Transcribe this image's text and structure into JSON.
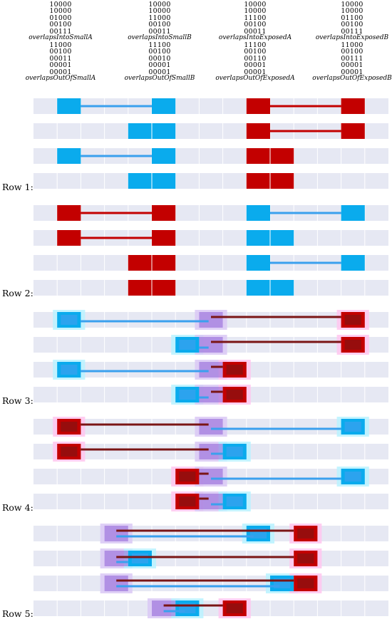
{
  "colors": {
    "blue": "#0aabed",
    "red": "#c30000",
    "lane": "#e6e8f3",
    "blueHalo": "#b8f2ff",
    "redHalo": "#ffc6ef",
    "darkRed": "#7a1515",
    "mix": "#8e5fd6",
    "line_blue": "#3aa0ee"
  },
  "columns": [
    {
      "name": "overlapsIntoSmallA",
      "bits": [
        "10000",
        "10000",
        "01000",
        "00100",
        "00111"
      ],
      "out_name": "overlapsOutOfSmallA",
      "out_bits": [
        "11000",
        "00100",
        "00011",
        "00001",
        "00001"
      ]
    },
    {
      "name": "overlapsIntoSmallB",
      "bits": [
        "10000",
        "10000",
        "11000",
        "00100",
        "00011"
      ],
      "out_name": "overlapsOutOfSmallB",
      "out_bits": [
        "11100",
        "00100",
        "00010",
        "00001",
        "00001"
      ]
    },
    {
      "name": "overlapsIntoExposedA",
      "bits": [
        "10000",
        "10000",
        "11100",
        "00100",
        "00011"
      ],
      "out_name": "overlapsOutOfExposedA",
      "out_bits": [
        "11100",
        "00100",
        "00110",
        "00001",
        "00001"
      ]
    },
    {
      "name": "overlapsIntoExposedB",
      "bits": [
        "10000",
        "10000",
        "01100",
        "00100",
        "00111"
      ],
      "out_name": "overlapsOutOfExposedB",
      "out_bits": [
        "11000",
        "00100",
        "00111",
        "00001",
        "00001"
      ]
    }
  ],
  "row_labels": [
    "Row 1:",
    "Row 2:",
    "Row 3:",
    "Row 4:",
    "Row 5:"
  ],
  "grid_columns": 15,
  "lanes": [
    {
      "row": 1,
      "rects": [
        {
          "c": 1,
          "w": 1,
          "k": "blue"
        },
        {
          "c": 5,
          "w": 1,
          "k": "blue"
        },
        {
          "c": 9,
          "w": 1,
          "k": "red"
        },
        {
          "c": 13,
          "w": 1,
          "k": "red"
        }
      ],
      "lines": [
        {
          "a": 2,
          "b": 5,
          "k": "blue"
        },
        {
          "a": 10,
          "b": 13,
          "k": "red"
        }
      ]
    },
    {
      "row": 1,
      "rects": [
        {
          "c": 4,
          "w": 2,
          "k": "blue"
        },
        {
          "c": 9,
          "w": 1,
          "k": "red"
        },
        {
          "c": 13,
          "w": 1,
          "k": "red"
        }
      ],
      "lines": [
        {
          "a": 10,
          "b": 13,
          "k": "red"
        }
      ]
    },
    {
      "row": 1,
      "rects": [
        {
          "c": 1,
          "w": 1,
          "k": "blue"
        },
        {
          "c": 5,
          "w": 1,
          "k": "blue"
        },
        {
          "c": 9,
          "w": 2,
          "k": "red"
        }
      ],
      "lines": [
        {
          "a": 2,
          "b": 5,
          "k": "blue"
        }
      ]
    },
    {
      "row": 1,
      "rects": [
        {
          "c": 4,
          "w": 2,
          "k": "blue"
        },
        {
          "c": 9,
          "w": 2,
          "k": "red"
        }
      ],
      "lines": []
    },
    {
      "row": 2,
      "rects": [
        {
          "c": 1,
          "w": 1,
          "k": "red"
        },
        {
          "c": 5,
          "w": 1,
          "k": "red"
        },
        {
          "c": 9,
          "w": 1,
          "k": "blue"
        },
        {
          "c": 13,
          "w": 1,
          "k": "blue"
        }
      ],
      "lines": [
        {
          "a": 2,
          "b": 5,
          "k": "red"
        },
        {
          "a": 10,
          "b": 13,
          "k": "blue"
        }
      ]
    },
    {
      "row": 2,
      "rects": [
        {
          "c": 1,
          "w": 1,
          "k": "red"
        },
        {
          "c": 5,
          "w": 1,
          "k": "red"
        },
        {
          "c": 9,
          "w": 2,
          "k": "blue"
        }
      ],
      "lines": [
        {
          "a": 2,
          "b": 5,
          "k": "red"
        }
      ]
    },
    {
      "row": 2,
      "rects": [
        {
          "c": 4,
          "w": 2,
          "k": "red"
        },
        {
          "c": 9,
          "w": 1,
          "k": "blue"
        },
        {
          "c": 13,
          "w": 1,
          "k": "blue"
        }
      ],
      "lines": [
        {
          "a": 10,
          "b": 13,
          "k": "blue"
        }
      ]
    },
    {
      "row": 2,
      "rects": [
        {
          "c": 4,
          "w": 2,
          "k": "red"
        },
        {
          "c": 9,
          "w": 2,
          "k": "blue"
        }
      ],
      "lines": []
    },
    {
      "row": 3,
      "rects": [
        {
          "c": 1,
          "w": 1,
          "k": "blue",
          "halo": true
        },
        {
          "c": 7,
          "w": 1,
          "k": "mix",
          "halo": true
        },
        {
          "c": 13,
          "w": 1,
          "k": "red",
          "halo": true
        }
      ],
      "lines": [
        {
          "a": 2,
          "b": 7.4,
          "k": "blue",
          "dy": 2
        },
        {
          "a": 7.5,
          "b": 13,
          "k": "red",
          "dy": -4
        }
      ]
    },
    {
      "row": 3,
      "rects": [
        {
          "c": 6,
          "w": 1,
          "k": "blue",
          "halo": true
        },
        {
          "c": 7,
          "w": 1,
          "k": "mix",
          "halo": true
        },
        {
          "c": 13,
          "w": 1,
          "k": "red",
          "halo": true
        }
      ],
      "lines": [
        {
          "a": 7,
          "b": 7.4,
          "k": "blue",
          "dy": 4
        },
        {
          "a": 7.5,
          "b": 13,
          "k": "red",
          "dy": -4
        }
      ]
    },
    {
      "row": 3,
      "rects": [
        {
          "c": 1,
          "w": 1,
          "k": "blue",
          "halo": true
        },
        {
          "c": 7,
          "w": 1,
          "k": "mix",
          "halo": true
        },
        {
          "c": 8,
          "w": 1,
          "k": "red",
          "halo": true
        }
      ],
      "lines": [
        {
          "a": 2,
          "b": 7.4,
          "k": "blue",
          "dy": 2
        },
        {
          "a": 7.5,
          "b": 8,
          "k": "red",
          "dy": -4
        }
      ]
    },
    {
      "row": 3,
      "rects": [
        {
          "c": 6,
          "w": 1,
          "k": "blue",
          "halo": true
        },
        {
          "c": 7,
          "w": 1,
          "k": "mix",
          "halo": true
        },
        {
          "c": 8,
          "w": 1,
          "k": "red",
          "halo": true
        }
      ],
      "lines": [
        {
          "a": 7,
          "b": 7.4,
          "k": "blue",
          "dy": 4
        },
        {
          "a": 7.5,
          "b": 8,
          "k": "red",
          "dy": -4
        }
      ]
    },
    {
      "row": 4,
      "rects": [
        {
          "c": 1,
          "w": 1,
          "k": "red",
          "halo": true
        },
        {
          "c": 7,
          "w": 1,
          "k": "mix",
          "halo": true
        },
        {
          "c": 13,
          "w": 1,
          "k": "blue",
          "halo": true
        }
      ],
      "lines": [
        {
          "a": 2,
          "b": 7.4,
          "k": "red",
          "dy": -3
        },
        {
          "a": 7.5,
          "b": 13,
          "k": "blue",
          "dy": 3
        }
      ]
    },
    {
      "row": 4,
      "rects": [
        {
          "c": 1,
          "w": 1,
          "k": "red",
          "halo": true
        },
        {
          "c": 7,
          "w": 1,
          "k": "mix",
          "halo": true
        },
        {
          "c": 8,
          "w": 1,
          "k": "blue",
          "halo": true
        }
      ],
      "lines": [
        {
          "a": 2,
          "b": 7.4,
          "k": "red",
          "dy": -3
        },
        {
          "a": 7.5,
          "b": 8,
          "k": "blue",
          "dy": 3
        }
      ]
    },
    {
      "row": 4,
      "rects": [
        {
          "c": 6,
          "w": 1,
          "k": "red",
          "halo": true
        },
        {
          "c": 7,
          "w": 1,
          "k": "mix",
          "halo": true
        },
        {
          "c": 13,
          "w": 1,
          "k": "blue",
          "halo": true
        }
      ],
      "lines": [
        {
          "a": 7,
          "b": 7.4,
          "k": "red",
          "dy": -4
        },
        {
          "a": 7.5,
          "b": 13,
          "k": "blue",
          "dy": 3
        }
      ]
    },
    {
      "row": 4,
      "rects": [
        {
          "c": 6,
          "w": 1,
          "k": "red",
          "halo": true
        },
        {
          "c": 7,
          "w": 1,
          "k": "mix",
          "halo": true
        },
        {
          "c": 8,
          "w": 1,
          "k": "blue",
          "halo": true
        }
      ],
      "lines": [
        {
          "a": 7,
          "b": 7.4,
          "k": "red",
          "dy": -4
        },
        {
          "a": 7.5,
          "b": 8,
          "k": "blue",
          "dy": 4
        }
      ]
    },
    {
      "row": 5,
      "rects": [
        {
          "c": 3,
          "w": 1,
          "k": "mix",
          "halo": true
        },
        {
          "c": 9,
          "w": 1,
          "k": "blue",
          "halo": true
        },
        {
          "c": 11,
          "w": 1,
          "k": "red",
          "halo": true
        }
      ],
      "lines": [
        {
          "a": 3.5,
          "b": 11,
          "k": "red",
          "dy": -4
        },
        {
          "a": 3.5,
          "b": 9.3,
          "k": "blue",
          "dy": 4
        }
      ]
    },
    {
      "row": 5,
      "rects": [
        {
          "c": 3,
          "w": 1,
          "k": "mix",
          "halo": true
        },
        {
          "c": 4,
          "w": 1,
          "k": "blue",
          "halo": true
        },
        {
          "c": 11,
          "w": 1,
          "k": "red",
          "halo": true
        }
      ],
      "lines": [
        {
          "a": 3.5,
          "b": 11,
          "k": "red",
          "dy": -2
        },
        {
          "a": 3.5,
          "b": 4,
          "k": "blue",
          "dy": 5
        }
      ]
    },
    {
      "row": 5,
      "rects": [
        {
          "c": 3,
          "w": 1,
          "k": "mix",
          "halo": true
        },
        {
          "c": 10,
          "w": 1,
          "k": "blue",
          "halo": true
        },
        {
          "c": 11,
          "w": 1,
          "k": "red",
          "halo": true
        }
      ],
      "lines": [
        {
          "a": 3.5,
          "b": 11,
          "k": "red",
          "dy": -4
        },
        {
          "a": 3.5,
          "b": 10.4,
          "k": "blue",
          "dy": 4
        }
      ]
    },
    {
      "row": 5,
      "rects": [
        {
          "c": 5,
          "w": 1,
          "k": "mix",
          "halo": true
        },
        {
          "c": 6,
          "w": 1,
          "k": "blue",
          "halo": true
        },
        {
          "c": 8,
          "w": 1,
          "k": "red",
          "halo": true
        }
      ],
      "lines": [
        {
          "a": 5.5,
          "b": 8,
          "k": "red",
          "dy": -4
        },
        {
          "a": 5.5,
          "b": 6.4,
          "k": "blue",
          "dy": 4
        }
      ]
    }
  ]
}
